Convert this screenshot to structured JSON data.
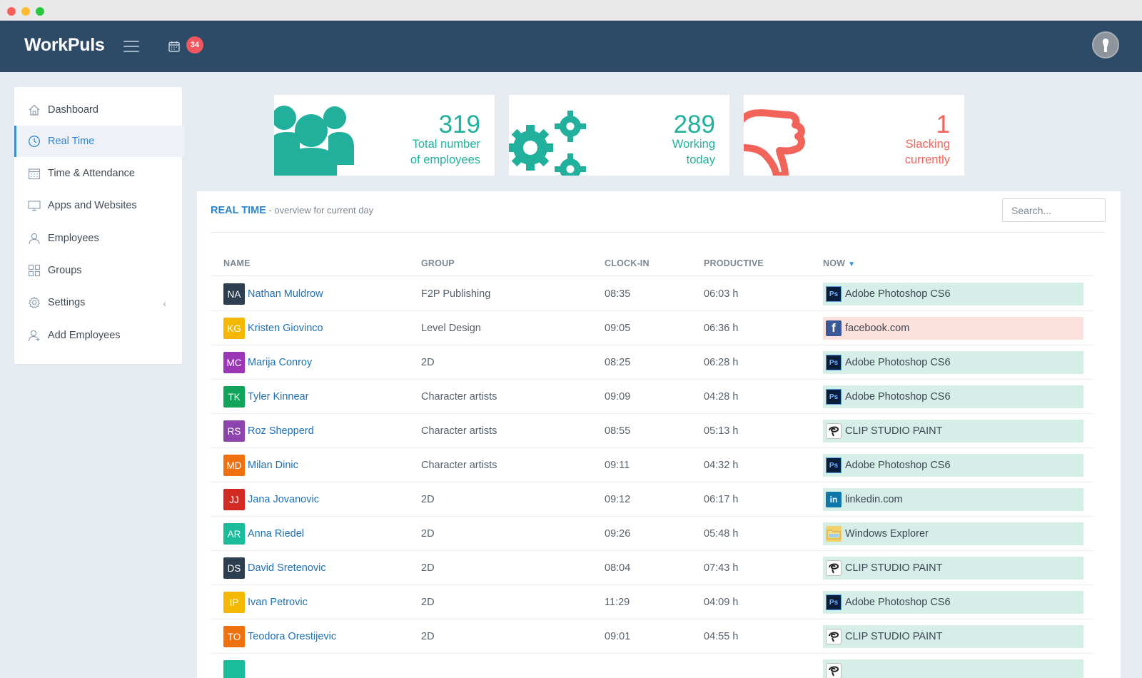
{
  "brand": "WorkPuls",
  "notifications": {
    "count": "34"
  },
  "icons": {
    "menu": "hamburger-icon",
    "calendar": "calendar-icon",
    "avatar": "user-avatar-icon"
  },
  "colors": {
    "topbar": "#2d4b66",
    "accent_teal": "#20b09b",
    "accent_coral": "#f2645a",
    "link_blue": "#1d6fb8",
    "badge": "#f0575f"
  },
  "sidebar": {
    "items": [
      {
        "label": "Dashboard",
        "icon": "home-icon",
        "active": false
      },
      {
        "label": "Real Time",
        "icon": "clock-icon",
        "active": true
      },
      {
        "label": "Time & Attendance",
        "icon": "calendar-icon",
        "active": false
      },
      {
        "label": "Apps and Websites",
        "icon": "monitor-icon",
        "active": false
      },
      {
        "label": "Employees",
        "icon": "user-icon",
        "active": false
      },
      {
        "label": "Groups",
        "icon": "grid-icon",
        "active": false
      },
      {
        "label": "Settings",
        "icon": "gear-icon",
        "active": false
      },
      {
        "label": "Add Employees",
        "icon": "add-user-icon",
        "active": false
      }
    ]
  },
  "stats": {
    "total": {
      "value": "319",
      "line1": "Total number",
      "line2": "of employees",
      "icon": "people-icon"
    },
    "working": {
      "value": "289",
      "line1": "Working",
      "line2": "today",
      "icon": "gears-icon"
    },
    "slacking": {
      "value": "1",
      "line1": "Slacking",
      "line2": "currently",
      "icon": "thumbs-down-icon"
    }
  },
  "panel": {
    "title": "REAL TIME",
    "subtitle": " - overview for current day",
    "search_placeholder": "Search..."
  },
  "table": {
    "columns": {
      "name": "NAME",
      "group": "GROUP",
      "clock_in": "CLOCK-IN",
      "productive": "PRODUCTIVE",
      "now": "NOW"
    },
    "rows": [
      {
        "initials": "NA",
        "color": "#2c3e50",
        "name": "Nathan Muldrow",
        "group": "F2P Publishing",
        "clock_in": "08:35",
        "productive": "06:03 h",
        "app": "Adobe Photoshop CS6",
        "app_icon": "photoshop-icon",
        "status": "productive"
      },
      {
        "initials": "KG",
        "color": "#f5b800",
        "name": "Kristen Giovinco",
        "group": "Level Design",
        "clock_in": "09:05",
        "productive": "06:36 h",
        "app": "facebook.com",
        "app_icon": "facebook-icon",
        "status": "unproductive"
      },
      {
        "initials": "MC",
        "color": "#9b36b7",
        "name": "Marija Conroy",
        "group": "2D",
        "clock_in": "08:25",
        "productive": "06:28 h",
        "app": "Adobe Photoshop CS6",
        "app_icon": "photoshop-icon",
        "status": "productive"
      },
      {
        "initials": "TK",
        "color": "#12a35a",
        "name": "Tyler Kinnear",
        "group": "Character artists",
        "clock_in": "09:09",
        "productive": "04:28 h",
        "app": "Adobe Photoshop CS6",
        "app_icon": "photoshop-icon",
        "status": "productive"
      },
      {
        "initials": "RS",
        "color": "#8e44ad",
        "name": "Roz Shepperd",
        "group": "Character artists",
        "clock_in": "08:55",
        "productive": "05:13 h",
        "app": "CLIP STUDIO PAINT",
        "app_icon": "clip-studio-icon",
        "status": "productive"
      },
      {
        "initials": "MD",
        "color": "#f0710f",
        "name": "Milan Dinic",
        "group": "Character artists",
        "clock_in": "09:11",
        "productive": "04:32 h",
        "app": "Adobe Photoshop CS6",
        "app_icon": "photoshop-icon",
        "status": "productive"
      },
      {
        "initials": "JJ",
        "color": "#d22a23",
        "name": "Jana Jovanovic",
        "group": "2D",
        "clock_in": "09:12",
        "productive": "06:17 h",
        "app": "linkedin.com",
        "app_icon": "linkedin-icon",
        "status": "productive"
      },
      {
        "initials": "AR",
        "color": "#1bbc9b",
        "name": "Anna Riedel",
        "group": "2D",
        "clock_in": "09:26",
        "productive": "05:48 h",
        "app": "Windows Explorer",
        "app_icon": "folder-icon",
        "status": "productive"
      },
      {
        "initials": "DS",
        "color": "#2c3e50",
        "name": "David Sretenovic",
        "group": "2D",
        "clock_in": "08:04",
        "productive": "07:43 h",
        "app": "CLIP STUDIO PAINT",
        "app_icon": "clip-studio-icon",
        "status": "productive"
      },
      {
        "initials": "IP",
        "color": "#f5b800",
        "name": "Ivan Petrovic",
        "group": "2D",
        "clock_in": "11:29",
        "productive": "04:09 h",
        "app": "Adobe Photoshop CS6",
        "app_icon": "photoshop-icon",
        "status": "productive"
      },
      {
        "initials": "TO",
        "color": "#f0710f",
        "name": "Teodora Orestijevic",
        "group": "2D",
        "clock_in": "09:01",
        "productive": "04:55 h",
        "app": "CLIP STUDIO PAINT",
        "app_icon": "clip-studio-icon",
        "status": "productive"
      },
      {
        "initials": "",
        "color": "#1bbc9b",
        "name": "",
        "group": "",
        "clock_in": "",
        "productive": "",
        "app": "",
        "app_icon": "clip-studio-icon",
        "status": "productive"
      }
    ]
  }
}
